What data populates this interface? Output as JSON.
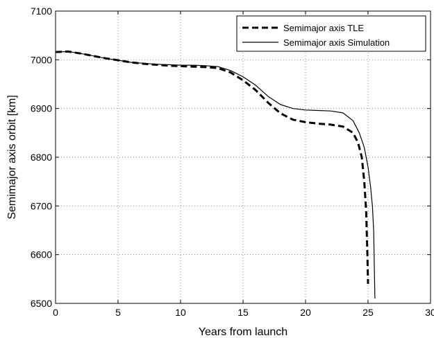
{
  "chart_data": {
    "type": "line",
    "xlabel": "Years from launch",
    "ylabel": "Semimajor axis orbit [km]",
    "xlim": [
      0,
      30
    ],
    "ylim": [
      6500,
      7100
    ],
    "xticks": [
      0,
      5,
      10,
      15,
      20,
      25,
      30
    ],
    "yticks": [
      6500,
      6600,
      6700,
      6800,
      6900,
      7000,
      7100
    ],
    "grid": true,
    "legend_position": "top-right",
    "series": [
      {
        "name": "Semimajor axis TLE",
        "line_style": "dashed",
        "color": "#000000",
        "points": [
          [
            0,
            7016
          ],
          [
            1,
            7017
          ],
          [
            2,
            7013
          ],
          [
            3,
            7008
          ],
          [
            4,
            7003
          ],
          [
            5,
            6999
          ],
          [
            6,
            6995
          ],
          [
            7,
            6992
          ],
          [
            8,
            6990
          ],
          [
            9,
            6988
          ],
          [
            10,
            6987
          ],
          [
            11,
            6986
          ],
          [
            12,
            6985
          ],
          [
            13,
            6983
          ],
          [
            14,
            6974
          ],
          [
            15,
            6958
          ],
          [
            16,
            6938
          ],
          [
            17,
            6912
          ],
          [
            18,
            6890
          ],
          [
            19,
            6877
          ],
          [
            20,
            6872
          ],
          [
            21,
            6869
          ],
          [
            22,
            6867
          ],
          [
            23,
            6863
          ],
          [
            23.8,
            6850
          ],
          [
            24.2,
            6830
          ],
          [
            24.5,
            6800
          ],
          [
            24.7,
            6750
          ],
          [
            24.85,
            6690
          ],
          [
            24.95,
            6600
          ],
          [
            25.0,
            6540
          ]
        ]
      },
      {
        "name": "Semimajor axis Simulation",
        "line_style": "solid",
        "color": "#000000",
        "points": [
          [
            0,
            7016
          ],
          [
            1,
            7017
          ],
          [
            2,
            7013
          ],
          [
            3,
            7008
          ],
          [
            4,
            7003
          ],
          [
            5,
            6999
          ],
          [
            6,
            6995
          ],
          [
            7,
            6993
          ],
          [
            8,
            6991
          ],
          [
            9,
            6990
          ],
          [
            10,
            6989
          ],
          [
            11,
            6989
          ],
          [
            12,
            6988
          ],
          [
            13,
            6986
          ],
          [
            14,
            6978
          ],
          [
            15,
            6965
          ],
          [
            16,
            6948
          ],
          [
            17,
            6925
          ],
          [
            18,
            6908
          ],
          [
            19,
            6900
          ],
          [
            20,
            6897
          ],
          [
            21,
            6896
          ],
          [
            22,
            6895
          ],
          [
            23,
            6891
          ],
          [
            23.8,
            6875
          ],
          [
            24.3,
            6850
          ],
          [
            24.7,
            6820
          ],
          [
            25.0,
            6780
          ],
          [
            25.2,
            6740
          ],
          [
            25.35,
            6700
          ],
          [
            25.45,
            6650
          ],
          [
            25.5,
            6580
          ],
          [
            25.55,
            6510
          ]
        ]
      }
    ]
  }
}
